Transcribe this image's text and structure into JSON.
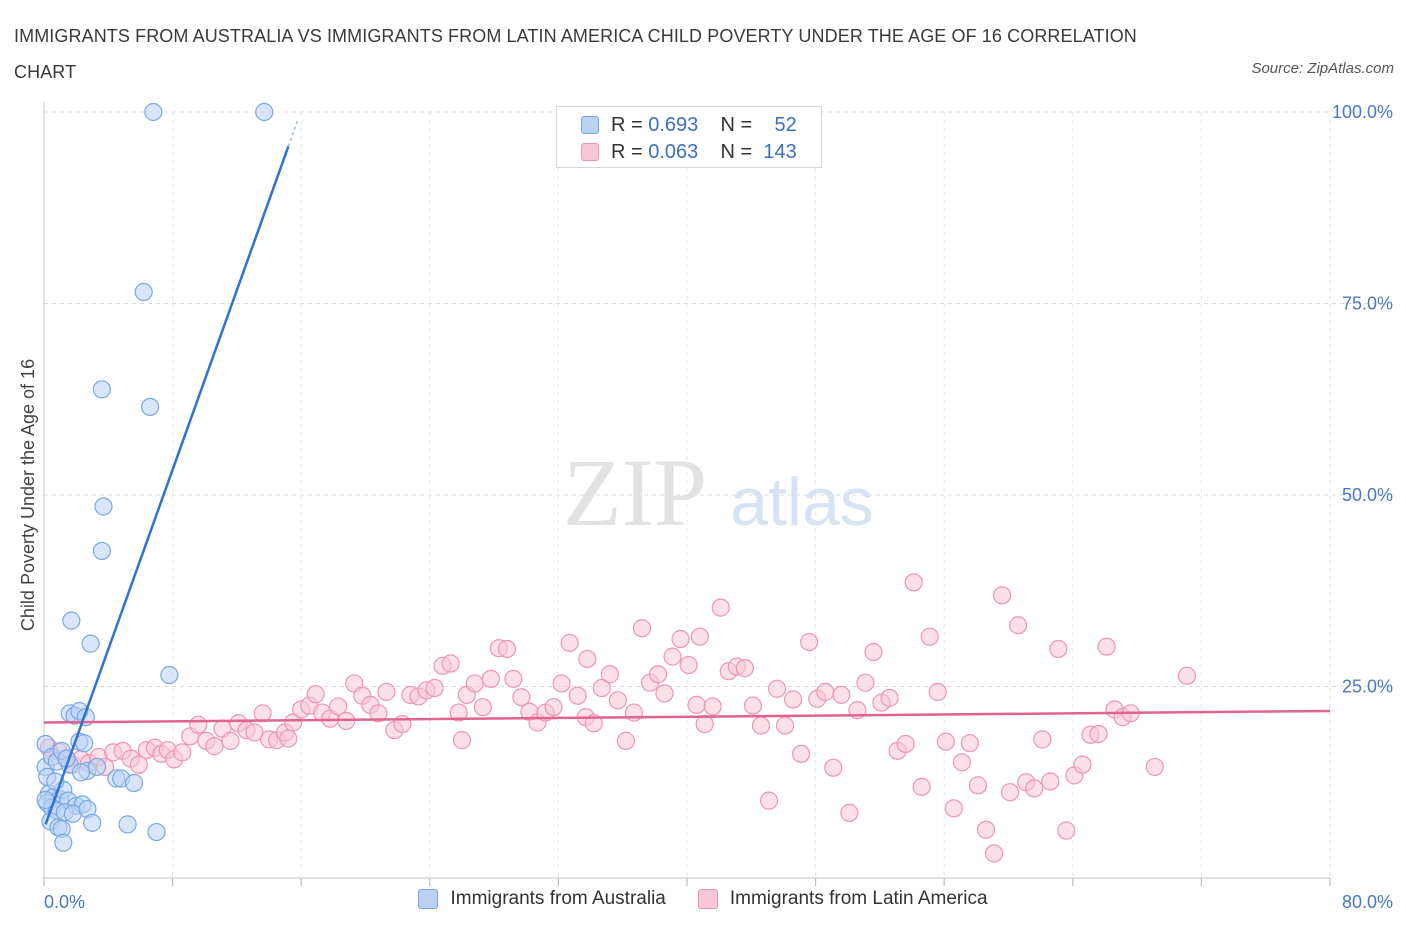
{
  "title": "IMMIGRANTS FROM AUSTRALIA VS IMMIGRANTS FROM LATIN AMERICA CHILD POVERTY UNDER THE AGE OF 16 CORRELATION CHART",
  "source": "Source: ZipAtlas.com",
  "watermark": {
    "zip": "ZIP",
    "atlas": "atlas"
  },
  "colors": {
    "blue_fill": "#b9d2f4",
    "blue_stroke": "#7aa7e4",
    "blue_line": "#2f72d6",
    "pink_fill": "#f8c6d6",
    "pink_stroke": "#ee95b2",
    "pink_line": "#e0648f",
    "axis_text": "#4a78c2",
    "grid": "#dcdcdc"
  },
  "legend": {
    "rows": [
      {
        "r_label": "R =",
        "r_value": "0.693",
        "n_label": "N =",
        "n_value": "52",
        "series": "Immigrants from Australia"
      },
      {
        "r_label": "R =",
        "r_value": "0.063",
        "n_label": "N =",
        "n_value": "143",
        "series": "Immigrants from Latin America"
      }
    ]
  },
  "chart_data": {
    "type": "scatter",
    "title": "IMMIGRANTS FROM AUSTRALIA VS IMMIGRANTS FROM LATIN AMERICA CHILD POVERTY UNDER THE AGE OF 16 CORRELATION CHART",
    "xlabel": "",
    "ylabel": "Child Poverty Under the Age of 16",
    "xlim": [
      0,
      80
    ],
    "ylim": [
      0,
      100
    ],
    "x_tick_labels": [
      "0.0%",
      "80.0%"
    ],
    "y_tick_labels": [
      "25.0%",
      "50.0%",
      "75.0%",
      "100.0%"
    ],
    "y_ticks": [
      25,
      50,
      75,
      100
    ],
    "x_minor_ticks": [
      0,
      8,
      16,
      24,
      32,
      40,
      48,
      56,
      64,
      72,
      80
    ],
    "grid": true,
    "series": [
      {
        "name": "Immigrants from Australia",
        "color": "#7aa7e4",
        "trend": {
          "x0": 0.1,
          "y0": 7.0,
          "x1": 15.2,
          "y1": 95.5
        },
        "points": [
          [
            6.8,
            100
          ],
          [
            13.7,
            100
          ],
          [
            6.2,
            76.5
          ],
          [
            3.6,
            63.8
          ],
          [
            6.6,
            61.5
          ],
          [
            3.7,
            48.5
          ],
          [
            3.6,
            42.7
          ],
          [
            1.7,
            33.6
          ],
          [
            2.9,
            30.6
          ],
          [
            7.8,
            26.5
          ],
          [
            0.1,
            17.5
          ],
          [
            0.1,
            14.5
          ],
          [
            0.5,
            15.8
          ],
          [
            0.8,
            15.2
          ],
          [
            1.1,
            16.6
          ],
          [
            1.6,
            21.5
          ],
          [
            1.9,
            21.2
          ],
          [
            2.2,
            21.8
          ],
          [
            2.6,
            21.0
          ],
          [
            2.2,
            17.8
          ],
          [
            2.5,
            17.6
          ],
          [
            2.7,
            14.0
          ],
          [
            1.6,
            14.8
          ],
          [
            2.3,
            13.8
          ],
          [
            3.3,
            14.5
          ],
          [
            4.5,
            13.0
          ],
          [
            4.8,
            13.0
          ],
          [
            5.6,
            12.4
          ],
          [
            0.3,
            11.0
          ],
          [
            0.6,
            10.6
          ],
          [
            1.0,
            10.3
          ],
          [
            1.2,
            11.5
          ],
          [
            1.5,
            10.1
          ],
          [
            2.0,
            9.4
          ],
          [
            2.4,
            9.6
          ],
          [
            0.2,
            9.8
          ],
          [
            0.5,
            9.2
          ],
          [
            0.8,
            8.8
          ],
          [
            1.3,
            8.6
          ],
          [
            1.8,
            8.4
          ],
          [
            2.7,
            9.0
          ],
          [
            0.4,
            7.4
          ],
          [
            0.9,
            6.6
          ],
          [
            1.1,
            6.4
          ],
          [
            3.0,
            7.2
          ],
          [
            5.2,
            7.0
          ],
          [
            7.0,
            6.0
          ],
          [
            1.2,
            4.6
          ],
          [
            0.1,
            10.2
          ],
          [
            0.2,
            13.2
          ],
          [
            1.4,
            15.6
          ],
          [
            0.7,
            12.6
          ]
        ]
      },
      {
        "name": "Immigrants from Latin America",
        "color": "#ee95b2",
        "trend": {
          "x0": 0,
          "y0": 20.3,
          "x1": 80,
          "y1": 21.8
        },
        "points": [
          [
            0.3,
            17.0
          ],
          [
            0.9,
            16.5
          ],
          [
            1.4,
            15.5
          ],
          [
            1.8,
            14.8
          ],
          [
            2.3,
            15.5
          ],
          [
            2.8,
            15.0
          ],
          [
            3.4,
            15.8
          ],
          [
            3.8,
            14.5
          ],
          [
            4.3,
            16.4
          ],
          [
            4.9,
            16.6
          ],
          [
            5.4,
            15.6
          ],
          [
            5.9,
            14.8
          ],
          [
            6.4,
            16.7
          ],
          [
            6.9,
            17.0
          ],
          [
            7.3,
            16.2
          ],
          [
            7.7,
            16.7
          ],
          [
            8.1,
            15.5
          ],
          [
            8.6,
            16.4
          ],
          [
            9.1,
            18.5
          ],
          [
            9.6,
            20.0
          ],
          [
            10.1,
            17.9
          ],
          [
            10.6,
            17.2
          ],
          [
            11.1,
            19.5
          ],
          [
            11.6,
            17.9
          ],
          [
            12.1,
            20.2
          ],
          [
            12.6,
            19.3
          ],
          [
            13.1,
            19.0
          ],
          [
            13.6,
            21.5
          ],
          [
            14.0,
            18.1
          ],
          [
            14.5,
            18.0
          ],
          [
            15.0,
            19.0
          ],
          [
            15.5,
            20.3
          ],
          [
            16.0,
            22.0
          ],
          [
            16.5,
            22.5
          ],
          [
            16.9,
            24.0
          ],
          [
            17.3,
            21.6
          ],
          [
            17.8,
            20.8
          ],
          [
            18.3,
            22.4
          ],
          [
            18.8,
            20.5
          ],
          [
            19.3,
            25.4
          ],
          [
            19.8,
            23.8
          ],
          [
            20.3,
            22.6
          ],
          [
            20.8,
            21.5
          ],
          [
            21.3,
            24.3
          ],
          [
            21.8,
            19.3
          ],
          [
            22.3,
            20.1
          ],
          [
            22.8,
            23.9
          ],
          [
            23.3,
            23.7
          ],
          [
            23.8,
            24.5
          ],
          [
            24.3,
            24.8
          ],
          [
            24.8,
            27.7
          ],
          [
            25.3,
            28.0
          ],
          [
            25.8,
            21.6
          ],
          [
            26.3,
            23.9
          ],
          [
            26.8,
            25.4
          ],
          [
            27.3,
            22.3
          ],
          [
            27.8,
            26.0
          ],
          [
            28.3,
            30.0
          ],
          [
            28.8,
            29.9
          ],
          [
            29.2,
            26.0
          ],
          [
            29.7,
            23.6
          ],
          [
            30.2,
            21.7
          ],
          [
            30.7,
            20.3
          ],
          [
            31.2,
            21.6
          ],
          [
            31.7,
            22.3
          ],
          [
            32.2,
            25.4
          ],
          [
            32.7,
            30.7
          ],
          [
            33.2,
            23.8
          ],
          [
            33.7,
            21.0
          ],
          [
            34.2,
            20.2
          ],
          [
            34.7,
            24.8
          ],
          [
            35.2,
            26.6
          ],
          [
            35.7,
            23.2
          ],
          [
            36.2,
            17.9
          ],
          [
            36.7,
            21.6
          ],
          [
            37.2,
            32.6
          ],
          [
            37.7,
            25.5
          ],
          [
            38.2,
            26.6
          ],
          [
            38.6,
            24.1
          ],
          [
            39.1,
            28.9
          ],
          [
            39.6,
            31.2
          ],
          [
            40.1,
            27.8
          ],
          [
            40.6,
            22.6
          ],
          [
            41.1,
            20.1
          ],
          [
            41.6,
            22.4
          ],
          [
            42.1,
            35.3
          ],
          [
            42.6,
            27.0
          ],
          [
            43.1,
            27.6
          ],
          [
            43.6,
            27.4
          ],
          [
            44.1,
            22.5
          ],
          [
            44.6,
            19.9
          ],
          [
            45.1,
            10.1
          ],
          [
            45.6,
            24.7
          ],
          [
            46.1,
            19.9
          ],
          [
            46.6,
            23.3
          ],
          [
            47.1,
            16.2
          ],
          [
            47.6,
            30.8
          ],
          [
            48.1,
            23.4
          ],
          [
            48.6,
            24.3
          ],
          [
            49.1,
            14.4
          ],
          [
            49.6,
            23.9
          ],
          [
            50.1,
            8.5
          ],
          [
            50.6,
            21.9
          ],
          [
            51.1,
            25.5
          ],
          [
            51.6,
            29.5
          ],
          [
            52.1,
            22.9
          ],
          [
            52.6,
            23.5
          ],
          [
            53.1,
            16.6
          ],
          [
            53.6,
            17.5
          ],
          [
            54.1,
            38.6
          ],
          [
            54.6,
            11.9
          ],
          [
            55.1,
            31.5
          ],
          [
            55.6,
            24.3
          ],
          [
            56.1,
            17.8
          ],
          [
            56.6,
            9.1
          ],
          [
            57.1,
            15.1
          ],
          [
            57.6,
            17.6
          ],
          [
            58.1,
            12.1
          ],
          [
            58.6,
            6.3
          ],
          [
            59.1,
            3.2
          ],
          [
            59.6,
            36.9
          ],
          [
            60.1,
            11.2
          ],
          [
            60.6,
            33.0
          ],
          [
            61.1,
            12.5
          ],
          [
            61.6,
            11.7
          ],
          [
            62.1,
            18.1
          ],
          [
            62.6,
            12.6
          ],
          [
            63.1,
            29.9
          ],
          [
            63.6,
            6.2
          ],
          [
            64.1,
            13.4
          ],
          [
            64.6,
            14.8
          ],
          [
            65.1,
            18.7
          ],
          [
            65.6,
            18.8
          ],
          [
            66.1,
            30.2
          ],
          [
            66.6,
            22.0
          ],
          [
            67.1,
            21.0
          ],
          [
            67.6,
            21.5
          ],
          [
            69.1,
            14.5
          ],
          [
            71.1,
            26.4
          ],
          [
            40.8,
            31.5
          ],
          [
            26.0,
            18.0
          ],
          [
            33.8,
            28.6
          ],
          [
            15.2,
            18.2
          ]
        ]
      }
    ]
  },
  "x_axis": {
    "min_label": "0.0%",
    "max_label": "80.0%"
  },
  "y_axis_label": "Child Poverty Under the Age of 16"
}
